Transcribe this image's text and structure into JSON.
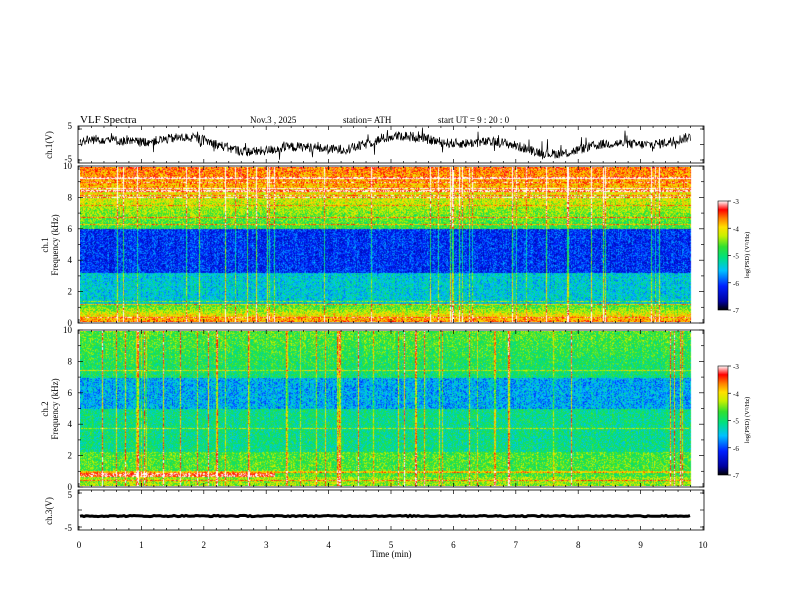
{
  "header": {
    "title": "VLF  Spectra",
    "date": "Nov.3  , 2025",
    "station": "station= ATH",
    "start_ut": "start  UT  =   9  : 20 : 0"
  },
  "chart_data": {
    "type": "heatmap",
    "time_axis": {
      "label": "Time  (min)",
      "range": [
        0,
        10
      ],
      "ticks": [
        "0",
        "1",
        "2",
        "3",
        "4",
        "5",
        "6",
        "7",
        "8",
        "9",
        "10"
      ],
      "data_end_min": 9.8
    },
    "panels": [
      {
        "id": "ch1-voltage",
        "type": "line",
        "ylabel": "ch.1(V)",
        "ylim": [
          -5,
          5
        ],
        "ytick_labels": [
          "5",
          "-5"
        ],
        "description_level": 0
      },
      {
        "id": "ch1-spectrogram",
        "type": "heatmap",
        "ylabel_channel": "ch.1",
        "ylabel": "Frequency  (kHz)",
        "ylim": [
          0,
          10
        ],
        "ytick_labels": [
          "0",
          "2",
          "4",
          "6",
          "8",
          "10"
        ],
        "colorbar_label": "log(PSD) (V²/Hz)",
        "colorbar_range": [
          -7,
          -3
        ],
        "colorbar_ticks": [
          "-3",
          "-4",
          "-5",
          "-6",
          "-7"
        ]
      },
      {
        "id": "ch2-spectrogram",
        "type": "heatmap",
        "ylabel_channel": "ch.2",
        "ylabel": "Frequency  (kHz)",
        "ylim": [
          0,
          10
        ],
        "ytick_labels": [
          "0",
          "2",
          "4",
          "6",
          "8",
          "10"
        ],
        "colorbar_label": "log(PSD) (V²/Hz)",
        "colorbar_range": [
          -7,
          -3
        ],
        "colorbar_ticks": [
          "-3",
          "-4",
          "-5",
          "-6",
          "-7"
        ]
      },
      {
        "id": "ch3-voltage",
        "type": "line",
        "ylabel": "ch.3(V)",
        "ylim": [
          -5,
          5
        ],
        "ytick_labels": [
          "5",
          "-5"
        ],
        "level_v": -1.5
      }
    ]
  }
}
